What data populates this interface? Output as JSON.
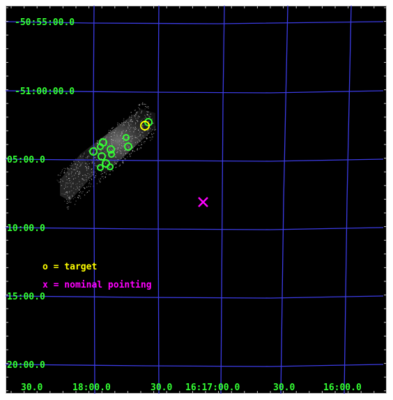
{
  "colors": {
    "background": "#000000",
    "grid": "#3c3ce6",
    "labels": "#33ff33",
    "target": "#ffff00",
    "pointing": "#ff00ff",
    "sources": "#33ff33",
    "exposure": "#bdbdbd"
  },
  "dec_labels": [
    "-50:55:00.0",
    "-51:00:00.0",
    "05:00.0",
    "10:00.0",
    "15:00.0",
    "20:00.0"
  ],
  "ra_labels": [
    "30.0",
    "18:00.0",
    "30.0",
    "16:17:00.0",
    "30.0",
    "16:00.0"
  ],
  "legend": {
    "target": "o = target",
    "pointing": "x = nominal pointing"
  },
  "markers": {
    "target_symbol": "o",
    "pointing_symbol": "x"
  }
}
